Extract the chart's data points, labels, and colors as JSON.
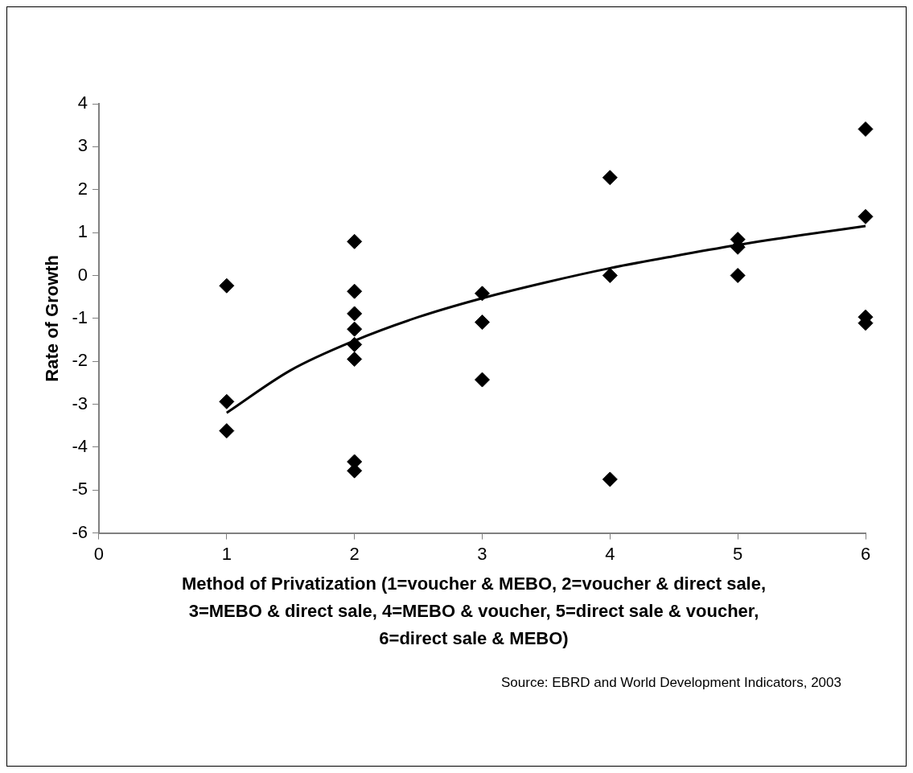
{
  "chart_data": {
    "type": "scatter",
    "xlabel": "Method of Privatization (1=voucher & MEBO, 2=voucher & direct sale, 3=MEBO & direct sale, 4=MEBO & voucher, 5=direct sale & voucher, 6=direct sale & MEBO)",
    "ylabel": "Rate of Growth",
    "annotations": [
      "Source: EBRD and World Development Indicators, 2003"
    ],
    "xlim": [
      0,
      6
    ],
    "xticks": [
      0,
      1,
      2,
      3,
      4,
      5,
      6
    ],
    "ylim": [
      -6,
      4
    ],
    "yticks": [
      -6,
      -5,
      -4,
      -3,
      -2,
      -1,
      0,
      1,
      2,
      3,
      4
    ],
    "grid": false,
    "legend": false,
    "series": [
      {
        "type": "scatter",
        "color": "#000000",
        "marker": "diamond",
        "x": [
          1,
          1,
          1,
          2,
          2,
          2,
          2,
          2,
          2,
          2,
          2,
          3,
          3,
          3,
          4,
          4,
          4,
          5,
          5,
          5,
          6,
          6,
          6,
          6
        ],
        "values": [
          -0.24,
          -2.94,
          -3.62,
          0.79,
          -0.37,
          -0.89,
          -1.25,
          -1.61,
          -1.95,
          -4.34,
          -4.55,
          -0.42,
          -1.09,
          -2.43,
          2.28,
          0,
          -4.75,
          0.84,
          0.66,
          0,
          3.41,
          1.37,
          -0.97,
          -1.11
        ]
      },
      {
        "type": "line",
        "color": "#000000",
        "marker": "none",
        "line_style": "solid",
        "x": [
          1,
          1.5,
          2,
          2.5,
          3,
          3.5,
          4,
          4.5,
          5,
          5.5,
          6
        ],
        "values": [
          -3.2,
          -2.21,
          -1.52,
          -0.97,
          -0.53,
          -0.16,
          0.17,
          0.45,
          0.71,
          0.94,
          1.15
        ]
      }
    ]
  }
}
